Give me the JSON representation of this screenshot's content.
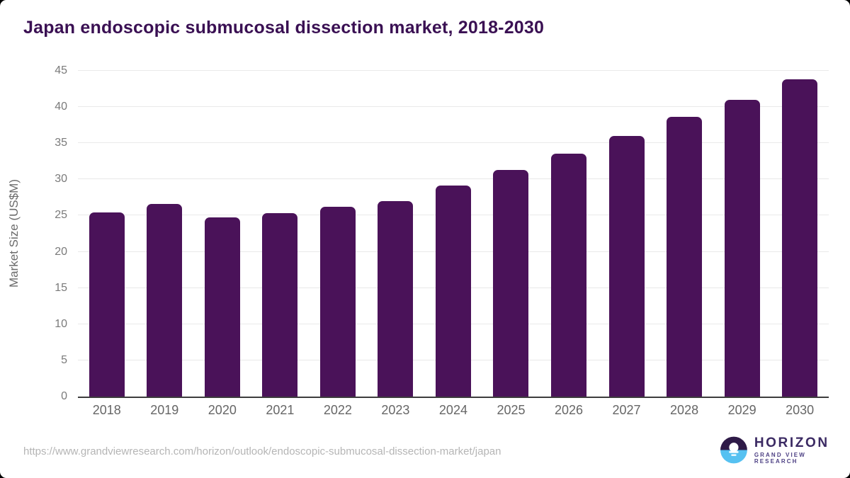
{
  "page": {
    "title": "Japan endoscopic submucosal dissection market, 2018-2030"
  },
  "chart_data": {
    "type": "bar",
    "title": "Japan endoscopic submucosal dissection market, 2018-2030",
    "categories": [
      "2018",
      "2019",
      "2020",
      "2021",
      "2022",
      "2023",
      "2024",
      "2025",
      "2026",
      "2027",
      "2028",
      "2029",
      "2030"
    ],
    "values": [
      25.4,
      26.6,
      24.8,
      25.3,
      26.2,
      27.0,
      29.2,
      31.3,
      33.6,
      36.0,
      38.6,
      41.0,
      43.8
    ],
    "xlabel": "",
    "ylabel": "Market Size (US$M)",
    "ylim": [
      0,
      45
    ],
    "ytick_step": 5,
    "yticks": [
      0,
      5,
      10,
      15,
      20,
      25,
      30,
      35,
      40,
      45
    ],
    "grid": true,
    "legend": false,
    "bar_color": "#4a1259"
  },
  "footer": {
    "source_url": "https://www.grandviewresearch.com/horizon/outlook/endoscopic-submucosal-dissection-market/japan",
    "logo": {
      "name": "HORIZON",
      "tagline": "GRAND VIEW RESEARCH"
    }
  },
  "colors": {
    "bar": "#4a1259",
    "title_text": "#3a1053",
    "axis_text": "#7a7a7a",
    "gridline": "#e9e9e9",
    "baseline": "#3d3d3d",
    "url_text": "#b5b5b5",
    "logo_dark_half": "#2e1a47",
    "logo_blue_half": "#56c1f1",
    "logo_text": "#3b2a63"
  }
}
